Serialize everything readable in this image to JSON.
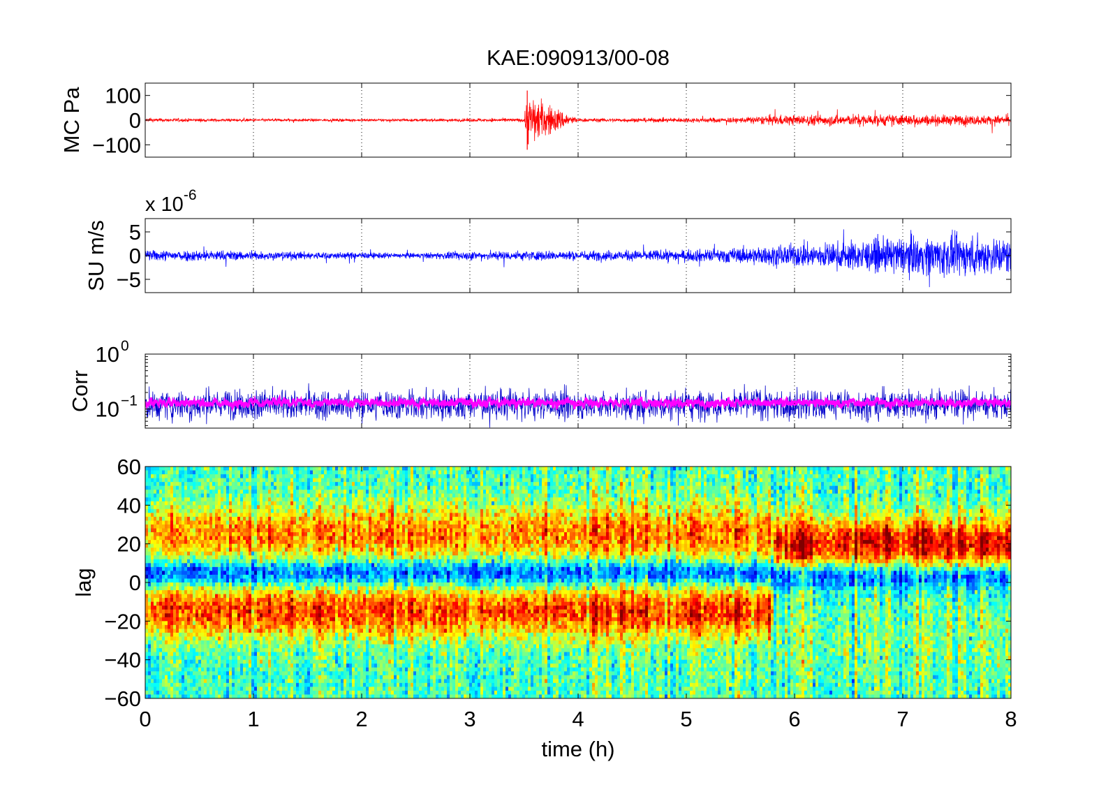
{
  "title": "KAE:090913/00-08",
  "xlabel": "time (h)",
  "x_ticks": [
    0,
    1,
    2,
    3,
    4,
    5,
    6,
    7,
    8
  ],
  "colors": {
    "mc": "#ff0000",
    "su": "#0000ff",
    "corr_raw": "#0000cc",
    "corr_smooth": "#ff00ff"
  },
  "chart_data": [
    {
      "type": "line",
      "name": "MC Pa",
      "ylabel": "MC Pa",
      "xlim": [
        0,
        8
      ],
      "ylim": [
        -150,
        150
      ],
      "y_ticks": [
        100,
        0,
        -100
      ],
      "series": [
        {
          "name": "",
          "color": "#ff0000",
          "x": [
            0,
            0.5,
            1,
            1.5,
            2,
            2.5,
            3,
            3.5,
            3.53,
            4,
            4.5,
            5,
            5.5,
            5.8,
            6,
            6.5,
            7,
            7.5,
            8
          ],
          "envelope": [
            8,
            7,
            6,
            6,
            5,
            6,
            7,
            8,
            115,
            8,
            9,
            10,
            12,
            22,
            22,
            25,
            25,
            22,
            20
          ]
        }
      ],
      "annotations": [
        {
          "x": 3.53,
          "y": 120,
          "ymin": -120,
          "label": ""
        }
      ]
    },
    {
      "type": "line",
      "name": "SU m/s",
      "ylabel": "SU m/s",
      "y_multiplier": "x 10",
      "y_exponent": "-6",
      "xlim": [
        0,
        8
      ],
      "ylim": [
        -7.8,
        7.8
      ],
      "y_ticks": [
        5,
        0,
        -5
      ],
      "series": [
        {
          "name": "",
          "color": "#0000ff",
          "x": [
            0,
            0.5,
            1,
            1.5,
            2,
            2.5,
            3,
            3.5,
            4,
            4.5,
            5,
            5.5,
            6,
            6.5,
            7,
            7.5,
            8
          ],
          "envelope": [
            1.2,
            1.3,
            1.0,
            0.9,
            0.7,
            0.6,
            1.0,
            1.1,
            1.1,
            1.2,
            1.3,
            1.8,
            2.6,
            3.2,
            4.2,
            4.5,
            4.2
          ]
        }
      ]
    },
    {
      "type": "line",
      "name": "Corr",
      "ylabel": "Corr",
      "y_scale": "log",
      "xlim": [
        0,
        8
      ],
      "ylim": [
        0.045,
        1.0
      ],
      "y_ticks": [
        "10^0",
        "10^-1"
      ],
      "series": [
        {
          "name": "",
          "color": "#0000cc",
          "x": [
            0,
            8
          ],
          "median": [
            0.12,
            0.12
          ]
        },
        {
          "name": "",
          "color": "#ff00ff",
          "x": [
            0,
            8
          ],
          "median": [
            0.13,
            0.13
          ]
        }
      ]
    },
    {
      "type": "heatmap",
      "name": "lag",
      "ylabel": "lag",
      "xlim": [
        0,
        8
      ],
      "ylim": [
        -60,
        60
      ],
      "y_ticks": [
        60,
        40,
        20,
        0,
        -20,
        -40,
        -60
      ],
      "colormap": "jet",
      "bands": [
        {
          "center": 5,
          "width": 8,
          "level": 0.05,
          "x": [
            0,
            8
          ]
        },
        {
          "center": 25,
          "width": 15,
          "level": 0.75,
          "x": [
            0,
            5.8
          ]
        },
        {
          "center": 20,
          "width": 14,
          "level": 0.9,
          "x": [
            5.8,
            8
          ]
        },
        {
          "center": -15,
          "width": 14,
          "level": 0.82,
          "x": [
            0,
            5.8
          ]
        },
        {
          "center": -30,
          "width": 20,
          "level": 0.5,
          "x": [
            5.8,
            8
          ]
        }
      ]
    }
  ]
}
